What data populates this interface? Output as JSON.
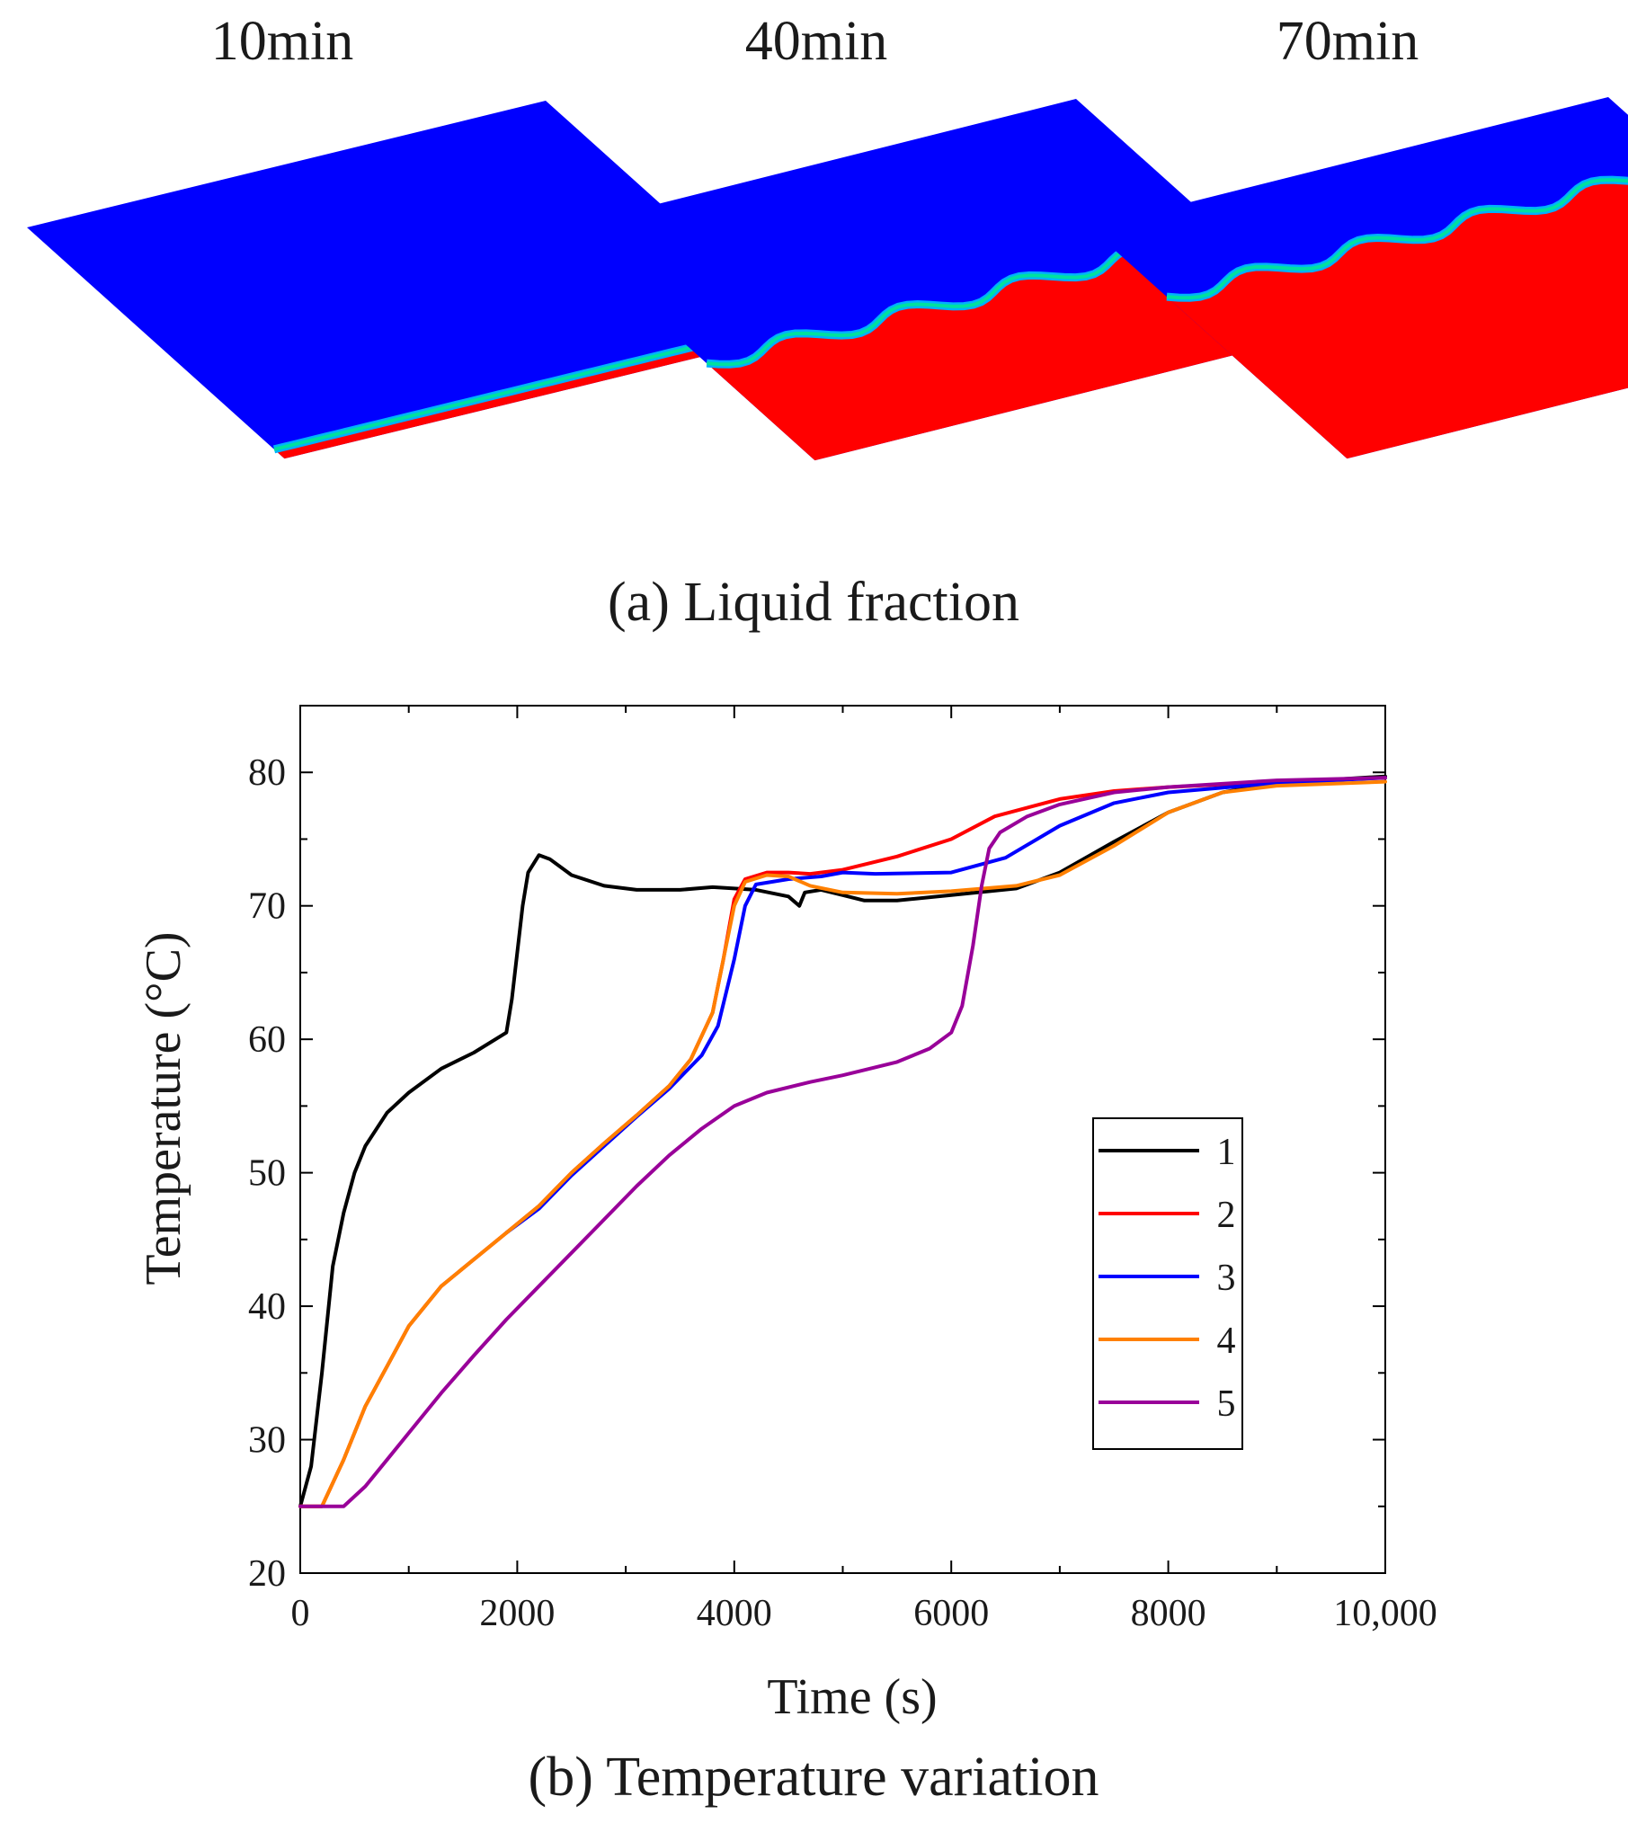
{
  "figure": {
    "panel_a": {
      "caption": "(a) Liquid fraction",
      "snapshots": [
        {
          "label": "10min",
          "melted_fraction": 0.04
        },
        {
          "label": "40min",
          "melted_fraction": 0.42
        },
        {
          "label": "70min",
          "melted_fraction": 0.7
        }
      ],
      "colors": {
        "liquid": "#ff0000",
        "solid": "#0000ff",
        "interface_outer": "#00e0a0",
        "interface_inner": "#00b0ff"
      }
    },
    "panel_b": {
      "caption": "(b) Temperature variation"
    }
  },
  "chart_data": {
    "type": "line",
    "title": "",
    "xlabel": "Time (s)",
    "ylabel": "Temperature (°C)",
    "xlim": [
      0,
      10000
    ],
    "ylim": [
      20,
      85
    ],
    "x_ticks": [
      0,
      2000,
      4000,
      6000,
      8000,
      10000
    ],
    "x_tick_labels": [
      "0",
      "2000",
      "4000",
      "6000",
      "8000",
      "10,000"
    ],
    "y_ticks": [
      20,
      30,
      40,
      50,
      60,
      70,
      80
    ],
    "y_tick_labels": [
      "20",
      "30",
      "40",
      "50",
      "60",
      "70",
      "80"
    ],
    "grid": false,
    "legend_position": "right",
    "series": [
      {
        "name": "1",
        "color": "#000000",
        "points": [
          [
            0,
            25
          ],
          [
            100,
            28
          ],
          [
            200,
            35
          ],
          [
            300,
            43
          ],
          [
            400,
            47
          ],
          [
            500,
            50
          ],
          [
            600,
            52
          ],
          [
            800,
            54.5
          ],
          [
            1000,
            56
          ],
          [
            1300,
            57.8
          ],
          [
            1600,
            59
          ],
          [
            1900,
            60.5
          ],
          [
            1950,
            63
          ],
          [
            2050,
            70
          ],
          [
            2100,
            72.5
          ],
          [
            2200,
            73.8
          ],
          [
            2300,
            73.5
          ],
          [
            2500,
            72.3
          ],
          [
            2800,
            71.5
          ],
          [
            3100,
            71.2
          ],
          [
            3500,
            71.2
          ],
          [
            3800,
            71.4
          ],
          [
            4200,
            71.2
          ],
          [
            4500,
            70.7
          ],
          [
            4600,
            70
          ],
          [
            4650,
            71
          ],
          [
            4800,
            71.2
          ],
          [
            5000,
            70.8
          ],
          [
            5200,
            70.4
          ],
          [
            5500,
            70.4
          ],
          [
            6000,
            70.8
          ],
          [
            6600,
            71.3
          ],
          [
            7000,
            72.5
          ],
          [
            7500,
            74.8
          ],
          [
            8000,
            77
          ],
          [
            8500,
            78.5
          ],
          [
            9000,
            79.2
          ],
          [
            10000,
            79.7
          ]
        ]
      },
      {
        "name": "2",
        "color": "#ff0000",
        "points": [
          [
            0,
            25
          ],
          [
            200,
            25
          ],
          [
            400,
            28.5
          ],
          [
            600,
            32.5
          ],
          [
            800,
            35.5
          ],
          [
            1000,
            38.5
          ],
          [
            1300,
            41.5
          ],
          [
            1600,
            43.5
          ],
          [
            1900,
            45.5
          ],
          [
            2200,
            47.5
          ],
          [
            2500,
            50
          ],
          [
            2800,
            52.2
          ],
          [
            3100,
            54.3
          ],
          [
            3400,
            56.5
          ],
          [
            3600,
            58.5
          ],
          [
            3800,
            62
          ],
          [
            3900,
            66
          ],
          [
            4000,
            70.5
          ],
          [
            4100,
            72
          ],
          [
            4300,
            72.5
          ],
          [
            4500,
            72.5
          ],
          [
            4700,
            72.4
          ],
          [
            5000,
            72.7
          ],
          [
            5500,
            73.7
          ],
          [
            6000,
            75
          ],
          [
            6400,
            76.7
          ],
          [
            7000,
            78
          ],
          [
            7500,
            78.6
          ],
          [
            8000,
            78.9
          ],
          [
            9000,
            79.3
          ],
          [
            10000,
            79.6
          ]
        ]
      },
      {
        "name": "3",
        "color": "#0000ff",
        "points": [
          [
            1900,
            45.5
          ],
          [
            2200,
            47.3
          ],
          [
            2500,
            49.8
          ],
          [
            2800,
            52
          ],
          [
            3100,
            54.2
          ],
          [
            3400,
            56.3
          ],
          [
            3700,
            58.8
          ],
          [
            3850,
            61
          ],
          [
            4000,
            66
          ],
          [
            4100,
            70
          ],
          [
            4200,
            71.6
          ],
          [
            4500,
            72
          ],
          [
            4800,
            72.2
          ],
          [
            5000,
            72.5
          ],
          [
            5300,
            72.4
          ],
          [
            6000,
            72.5
          ],
          [
            6500,
            73.6
          ],
          [
            7000,
            76
          ],
          [
            7500,
            77.7
          ],
          [
            8000,
            78.5
          ],
          [
            9000,
            79.2
          ],
          [
            10000,
            79.6
          ]
        ]
      },
      {
        "name": "4",
        "color": "#ff8000",
        "points": [
          [
            0,
            25
          ],
          [
            200,
            25
          ],
          [
            400,
            28.5
          ],
          [
            600,
            32.5
          ],
          [
            800,
            35.5
          ],
          [
            1000,
            38.5
          ],
          [
            1300,
            41.5
          ],
          [
            1600,
            43.5
          ],
          [
            1900,
            45.5
          ],
          [
            2200,
            47.5
          ],
          [
            2500,
            50
          ],
          [
            2800,
            52.2
          ],
          [
            3100,
            54.3
          ],
          [
            3400,
            56.5
          ],
          [
            3600,
            58.5
          ],
          [
            3800,
            62
          ],
          [
            3900,
            66
          ],
          [
            4000,
            70
          ],
          [
            4100,
            71.8
          ],
          [
            4300,
            72.3
          ],
          [
            4500,
            72.2
          ],
          [
            4700,
            71.5
          ],
          [
            5000,
            71
          ],
          [
            5500,
            70.9
          ],
          [
            6000,
            71.1
          ],
          [
            6600,
            71.5
          ],
          [
            7000,
            72.3
          ],
          [
            7500,
            74.5
          ],
          [
            8000,
            77
          ],
          [
            8500,
            78.5
          ],
          [
            9000,
            79
          ],
          [
            10000,
            79.3
          ]
        ]
      },
      {
        "name": "5",
        "color": "#990099",
        "points": [
          [
            0,
            25
          ],
          [
            200,
            25
          ],
          [
            400,
            25
          ],
          [
            600,
            26.5
          ],
          [
            800,
            28.5
          ],
          [
            1000,
            30.5
          ],
          [
            1300,
            33.5
          ],
          [
            1600,
            36.3
          ],
          [
            1900,
            39
          ],
          [
            2200,
            41.5
          ],
          [
            2500,
            44
          ],
          [
            2800,
            46.5
          ],
          [
            3100,
            49
          ],
          [
            3400,
            51.3
          ],
          [
            3700,
            53.3
          ],
          [
            4000,
            55
          ],
          [
            4300,
            56
          ],
          [
            4700,
            56.8
          ],
          [
            5000,
            57.3
          ],
          [
            5500,
            58.3
          ],
          [
            5800,
            59.3
          ],
          [
            6000,
            60.5
          ],
          [
            6100,
            62.5
          ],
          [
            6200,
            67
          ],
          [
            6280,
            71.5
          ],
          [
            6350,
            74.3
          ],
          [
            6450,
            75.5
          ],
          [
            6700,
            76.7
          ],
          [
            7000,
            77.6
          ],
          [
            7500,
            78.5
          ],
          [
            8000,
            78.9
          ],
          [
            9000,
            79.4
          ],
          [
            10000,
            79.6
          ]
        ]
      }
    ]
  }
}
